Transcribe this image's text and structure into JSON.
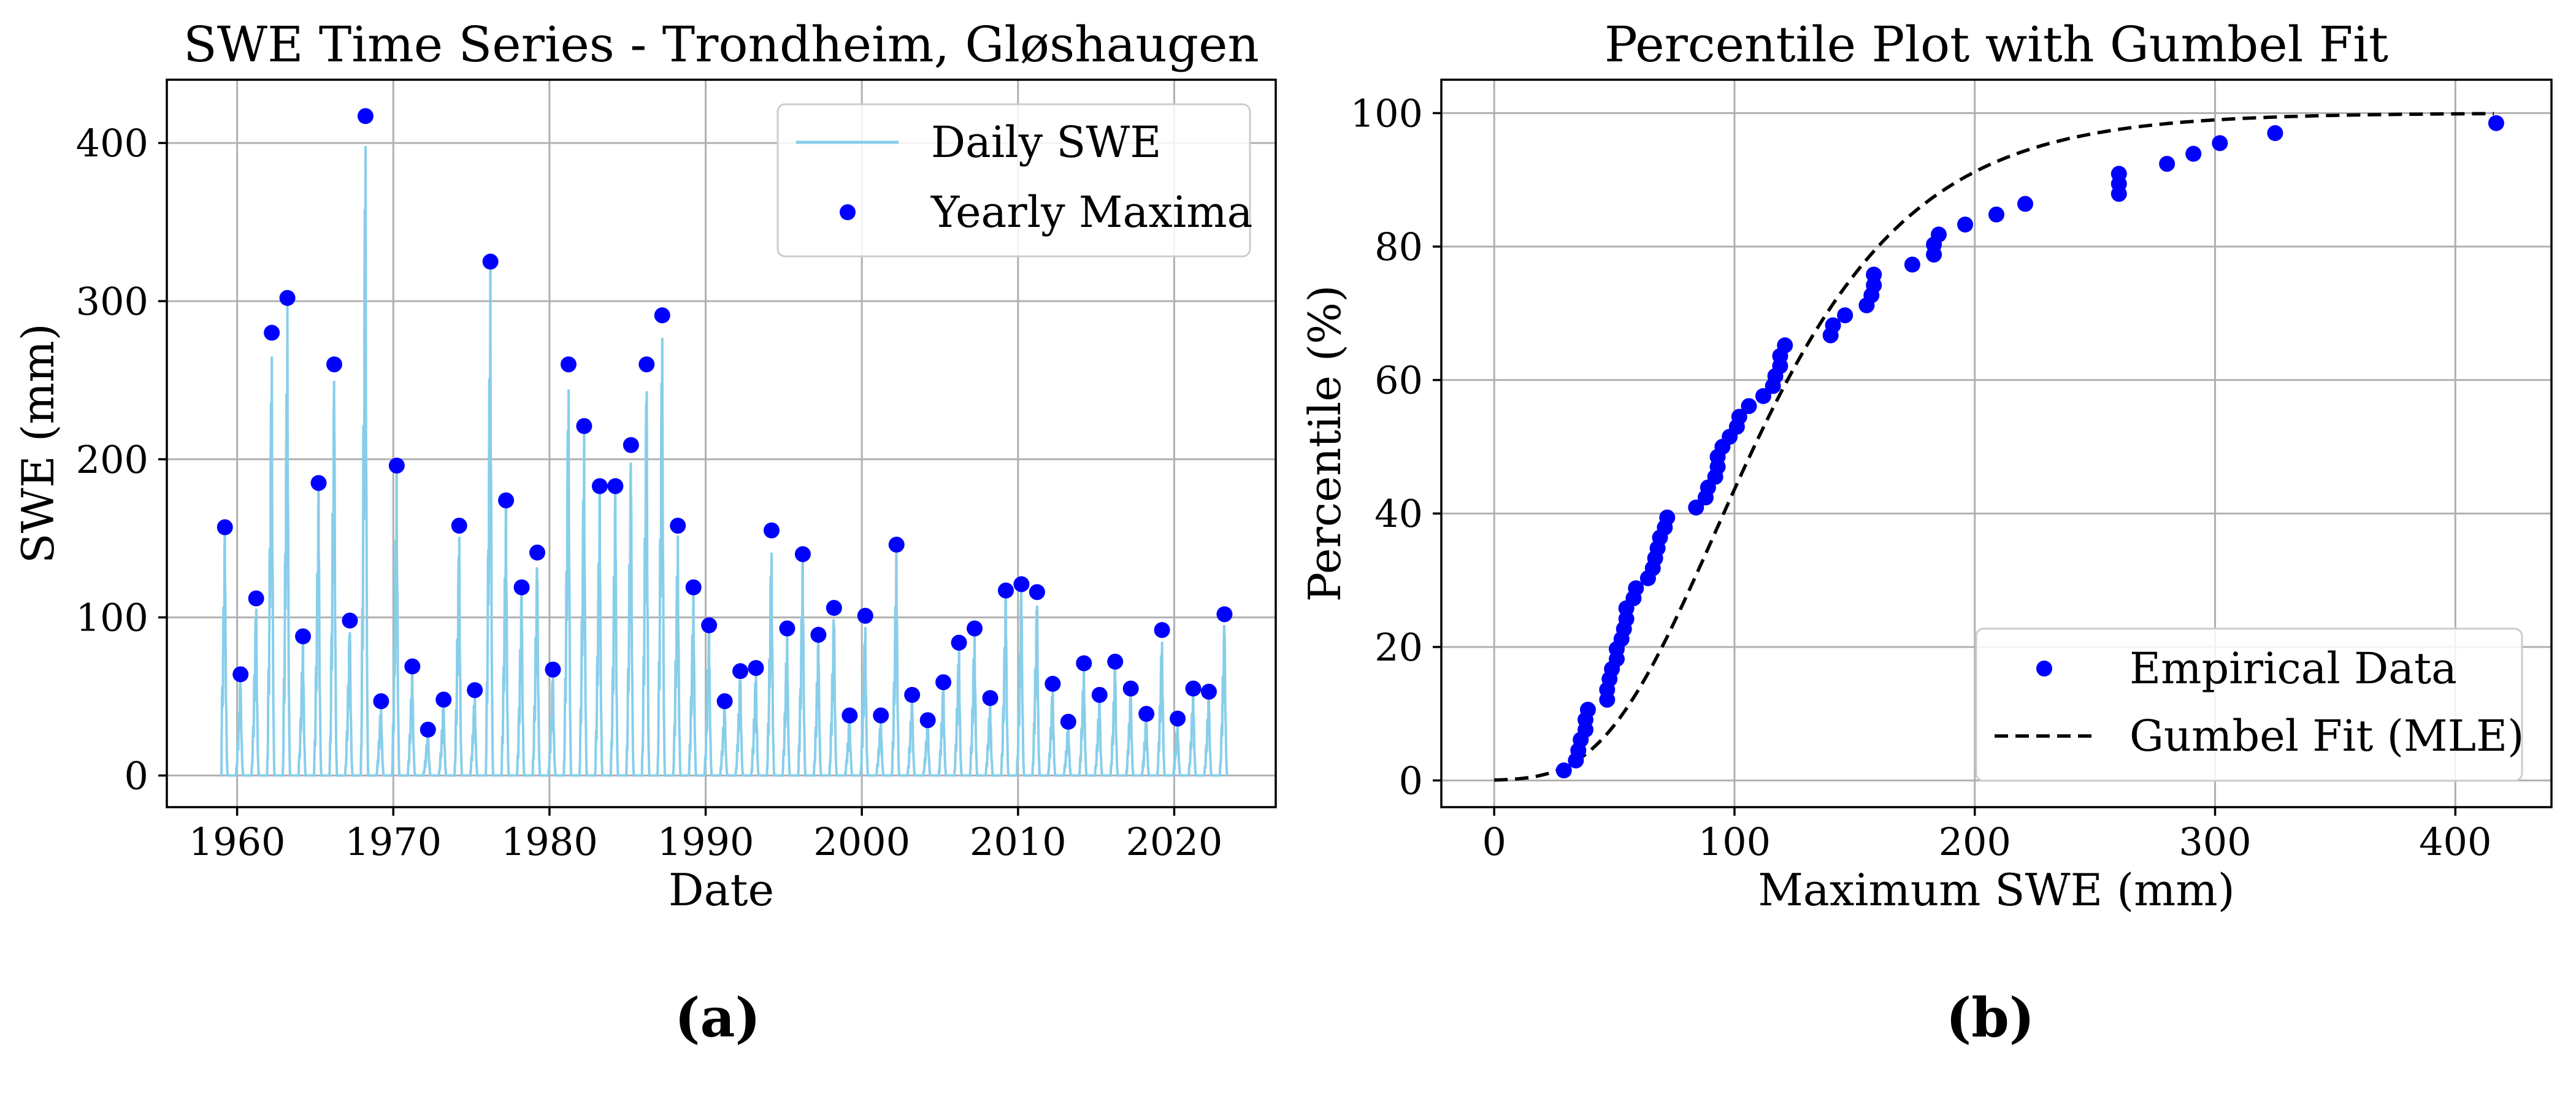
{
  "panel_labels": [
    "(a)",
    "(b)"
  ],
  "chart_data": [
    {
      "type": "line",
      "title": "SWE Time Series - Trondheim, Gløshaugen",
      "xlabel": "Date",
      "ylabel": "SWE (mm)",
      "xlim": [
        1955.5,
        2026.5
      ],
      "ylim": [
        -20,
        440
      ],
      "xticks": [
        1960,
        1970,
        1980,
        1990,
        2000,
        2010,
        2020
      ],
      "yticks": [
        0,
        100,
        200,
        300,
        400
      ],
      "grid": true,
      "legend_position": "top-right",
      "colors": {
        "daily": "#87CEEB",
        "maxima": "#0000ff"
      },
      "series": [
        {
          "name": "Daily SWE",
          "kind": "line"
        },
        {
          "name": "Yearly Maxima",
          "kind": "scatter",
          "x": [
            1959,
            1960,
            1961,
            1962,
            1963,
            1964,
            1965,
            1966,
            1967,
            1968,
            1969,
            1970,
            1971,
            1972,
            1973,
            1974,
            1975,
            1976,
            1977,
            1978,
            1979,
            1980,
            1981,
            1982,
            1983,
            1984,
            1985,
            1986,
            1987,
            1988,
            1989,
            1990,
            1991,
            1992,
            1993,
            1994,
            1995,
            1996,
            1997,
            1998,
            1999,
            2000,
            2001,
            2002,
            2003,
            2004,
            2005,
            2006,
            2007,
            2008,
            2009,
            2010,
            2011,
            2012,
            2013,
            2014,
            2015,
            2016,
            2017,
            2018,
            2019,
            2020,
            2021,
            2022,
            2023
          ],
          "y": [
            157,
            64,
            112,
            280,
            302,
            88,
            185,
            260,
            98,
            417,
            47,
            196,
            69,
            29,
            48,
            158,
            54,
            325,
            174,
            119,
            141,
            67,
            260,
            221,
            183,
            183,
            209,
            260,
            291,
            158,
            119,
            95,
            47,
            66,
            68,
            155,
            93,
            140,
            89,
            106,
            38,
            101,
            38,
            146,
            51,
            35,
            59,
            84,
            93,
            49,
            117,
            121,
            116,
            58,
            34,
            71,
            51,
            72,
            55,
            39,
            92,
            36,
            55,
            53,
            102
          ]
        }
      ]
    },
    {
      "type": "scatter",
      "title": "Percentile Plot with Gumbel Fit",
      "xlabel": "Maximum SWE (mm)",
      "ylabel": "Percentile (%)",
      "xlim": [
        -22,
        440
      ],
      "ylim": [
        -4,
        105
      ],
      "xticks": [
        0,
        100,
        200,
        300,
        400
      ],
      "yticks": [
        0,
        20,
        40,
        60,
        80,
        100
      ],
      "grid": true,
      "legend_position": "bottom-right",
      "colors": {
        "empirical": "#0000ff",
        "fit": "#000000"
      },
      "series": [
        {
          "name": "Empirical Data",
          "kind": "scatter",
          "x": [
            29,
            34,
            35,
            36,
            38,
            38,
            39,
            47,
            47,
            48,
            49,
            51,
            51,
            53,
            54,
            55,
            55,
            58,
            59,
            64,
            66,
            67,
            68,
            69,
            71,
            72,
            84,
            88,
            89,
            92,
            93,
            93,
            95,
            98,
            101,
            102,
            106,
            112,
            116,
            117,
            119,
            119,
            121,
            140,
            141,
            146,
            155,
            157,
            158,
            158,
            174,
            183,
            183,
            185,
            196,
            209,
            221,
            260,
            260,
            260,
            280,
            291,
            302,
            325,
            417
          ],
          "y": [
            1.5,
            3.0,
            4.5,
            6.1,
            7.6,
            9.1,
            10.6,
            12.1,
            13.6,
            15.2,
            16.7,
            18.2,
            19.7,
            21.2,
            22.7,
            24.2,
            25.8,
            27.3,
            28.8,
            30.3,
            31.8,
            33.3,
            34.8,
            36.4,
            37.9,
            39.4,
            40.9,
            42.4,
            43.9,
            45.5,
            47.0,
            48.5,
            50.0,
            51.5,
            53.0,
            54.5,
            56.1,
            57.6,
            59.1,
            60.6,
            62.1,
            63.6,
            65.2,
            66.7,
            68.2,
            69.7,
            71.2,
            72.7,
            74.2,
            75.8,
            77.3,
            78.8,
            80.3,
            81.8,
            83.3,
            84.8,
            86.4,
            87.9,
            89.4,
            90.9,
            92.4,
            93.9,
            95.5,
            97.0,
            98.5
          ]
        },
        {
          "name": "Gumbel Fit (MLE)",
          "kind": "line",
          "style": "dashed",
          "mu": 91.5,
          "beta": 45.5,
          "x_range": [
            0,
            417
          ]
        }
      ]
    }
  ]
}
